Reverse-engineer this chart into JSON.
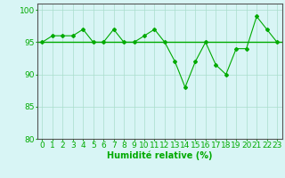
{
  "x": [
    0,
    1,
    2,
    3,
    4,
    5,
    6,
    7,
    8,
    9,
    10,
    11,
    12,
    13,
    14,
    15,
    16,
    17,
    18,
    19,
    20,
    21,
    22,
    23
  ],
  "y": [
    95,
    96,
    96,
    96,
    97,
    95,
    95,
    97,
    95,
    95,
    96,
    97,
    95,
    92,
    88,
    92,
    95,
    91.5,
    90,
    94,
    94,
    99,
    97,
    95
  ],
  "avg_line": 95,
  "ylim": [
    80,
    101
  ],
  "yticks": [
    80,
    85,
    90,
    95,
    100
  ],
  "xlim": [
    -0.5,
    23.5
  ],
  "xlabel": "Humidité relative (%)",
  "line_color": "#00aa00",
  "avg_color": "#00aa00",
  "bg_color": "#d8f5f5",
  "grid_color": "#aaddcc",
  "tick_color": "#00aa00",
  "xlabel_color": "#00aa00",
  "xlabel_fontsize": 7,
  "tick_fontsize": 6.5
}
